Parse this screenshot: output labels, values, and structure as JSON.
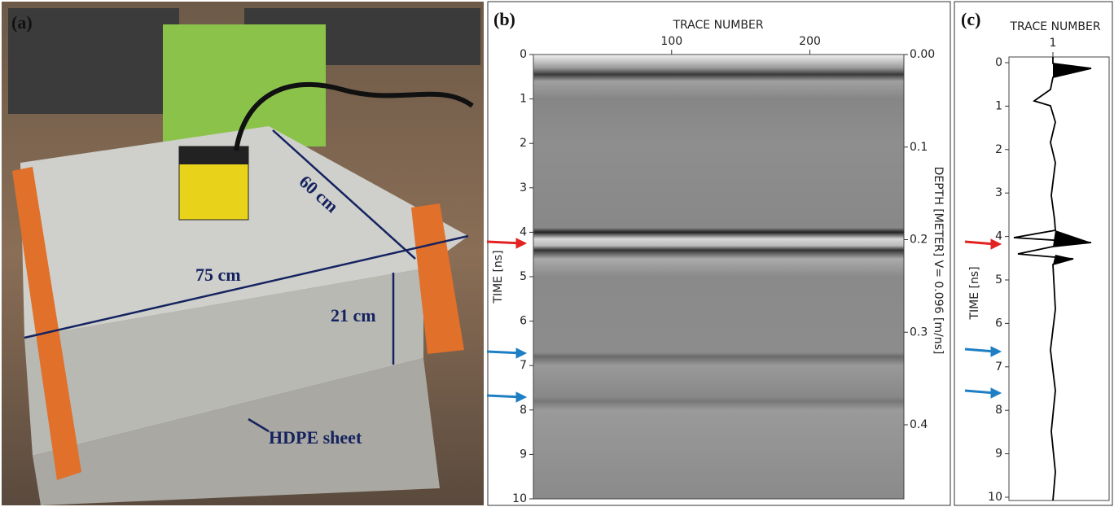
{
  "panel_a": {
    "label": "(a)",
    "dim_width": "60 cm",
    "dim_length": "75 cm",
    "dim_height": "21 cm",
    "sheet_label": "HDPE sheet"
  },
  "panel_b": {
    "label": "(b)",
    "x_axis_title": "TRACE NUMBER",
    "xlim": [
      0,
      268
    ],
    "xticks": [
      100,
      200
    ],
    "y_axis_title": "TIME [ns]",
    "ylim": [
      0,
      10
    ],
    "yticks": [
      0,
      1,
      2,
      3,
      4,
      5,
      6,
      7,
      8,
      9,
      10
    ],
    "y2_axis_title": "DEPTH [METER] V= 0.096 [m/ns]",
    "y2lim": [
      0,
      0.48
    ],
    "y2ticks": [
      {
        "value": 0,
        "label": "0.00"
      },
      0.1,
      0.2,
      0.3,
      0.4
    ]
  },
  "panel_c": {
    "label": "(c)",
    "x_axis_title": "TRACE NUMBER",
    "xticks": [
      1
    ],
    "y_axis_title": "TIME [ns]",
    "ylim": [
      0,
      10
    ],
    "yticks": [
      0,
      1,
      2,
      3,
      4,
      5,
      6,
      7,
      8,
      9,
      10
    ]
  }
}
